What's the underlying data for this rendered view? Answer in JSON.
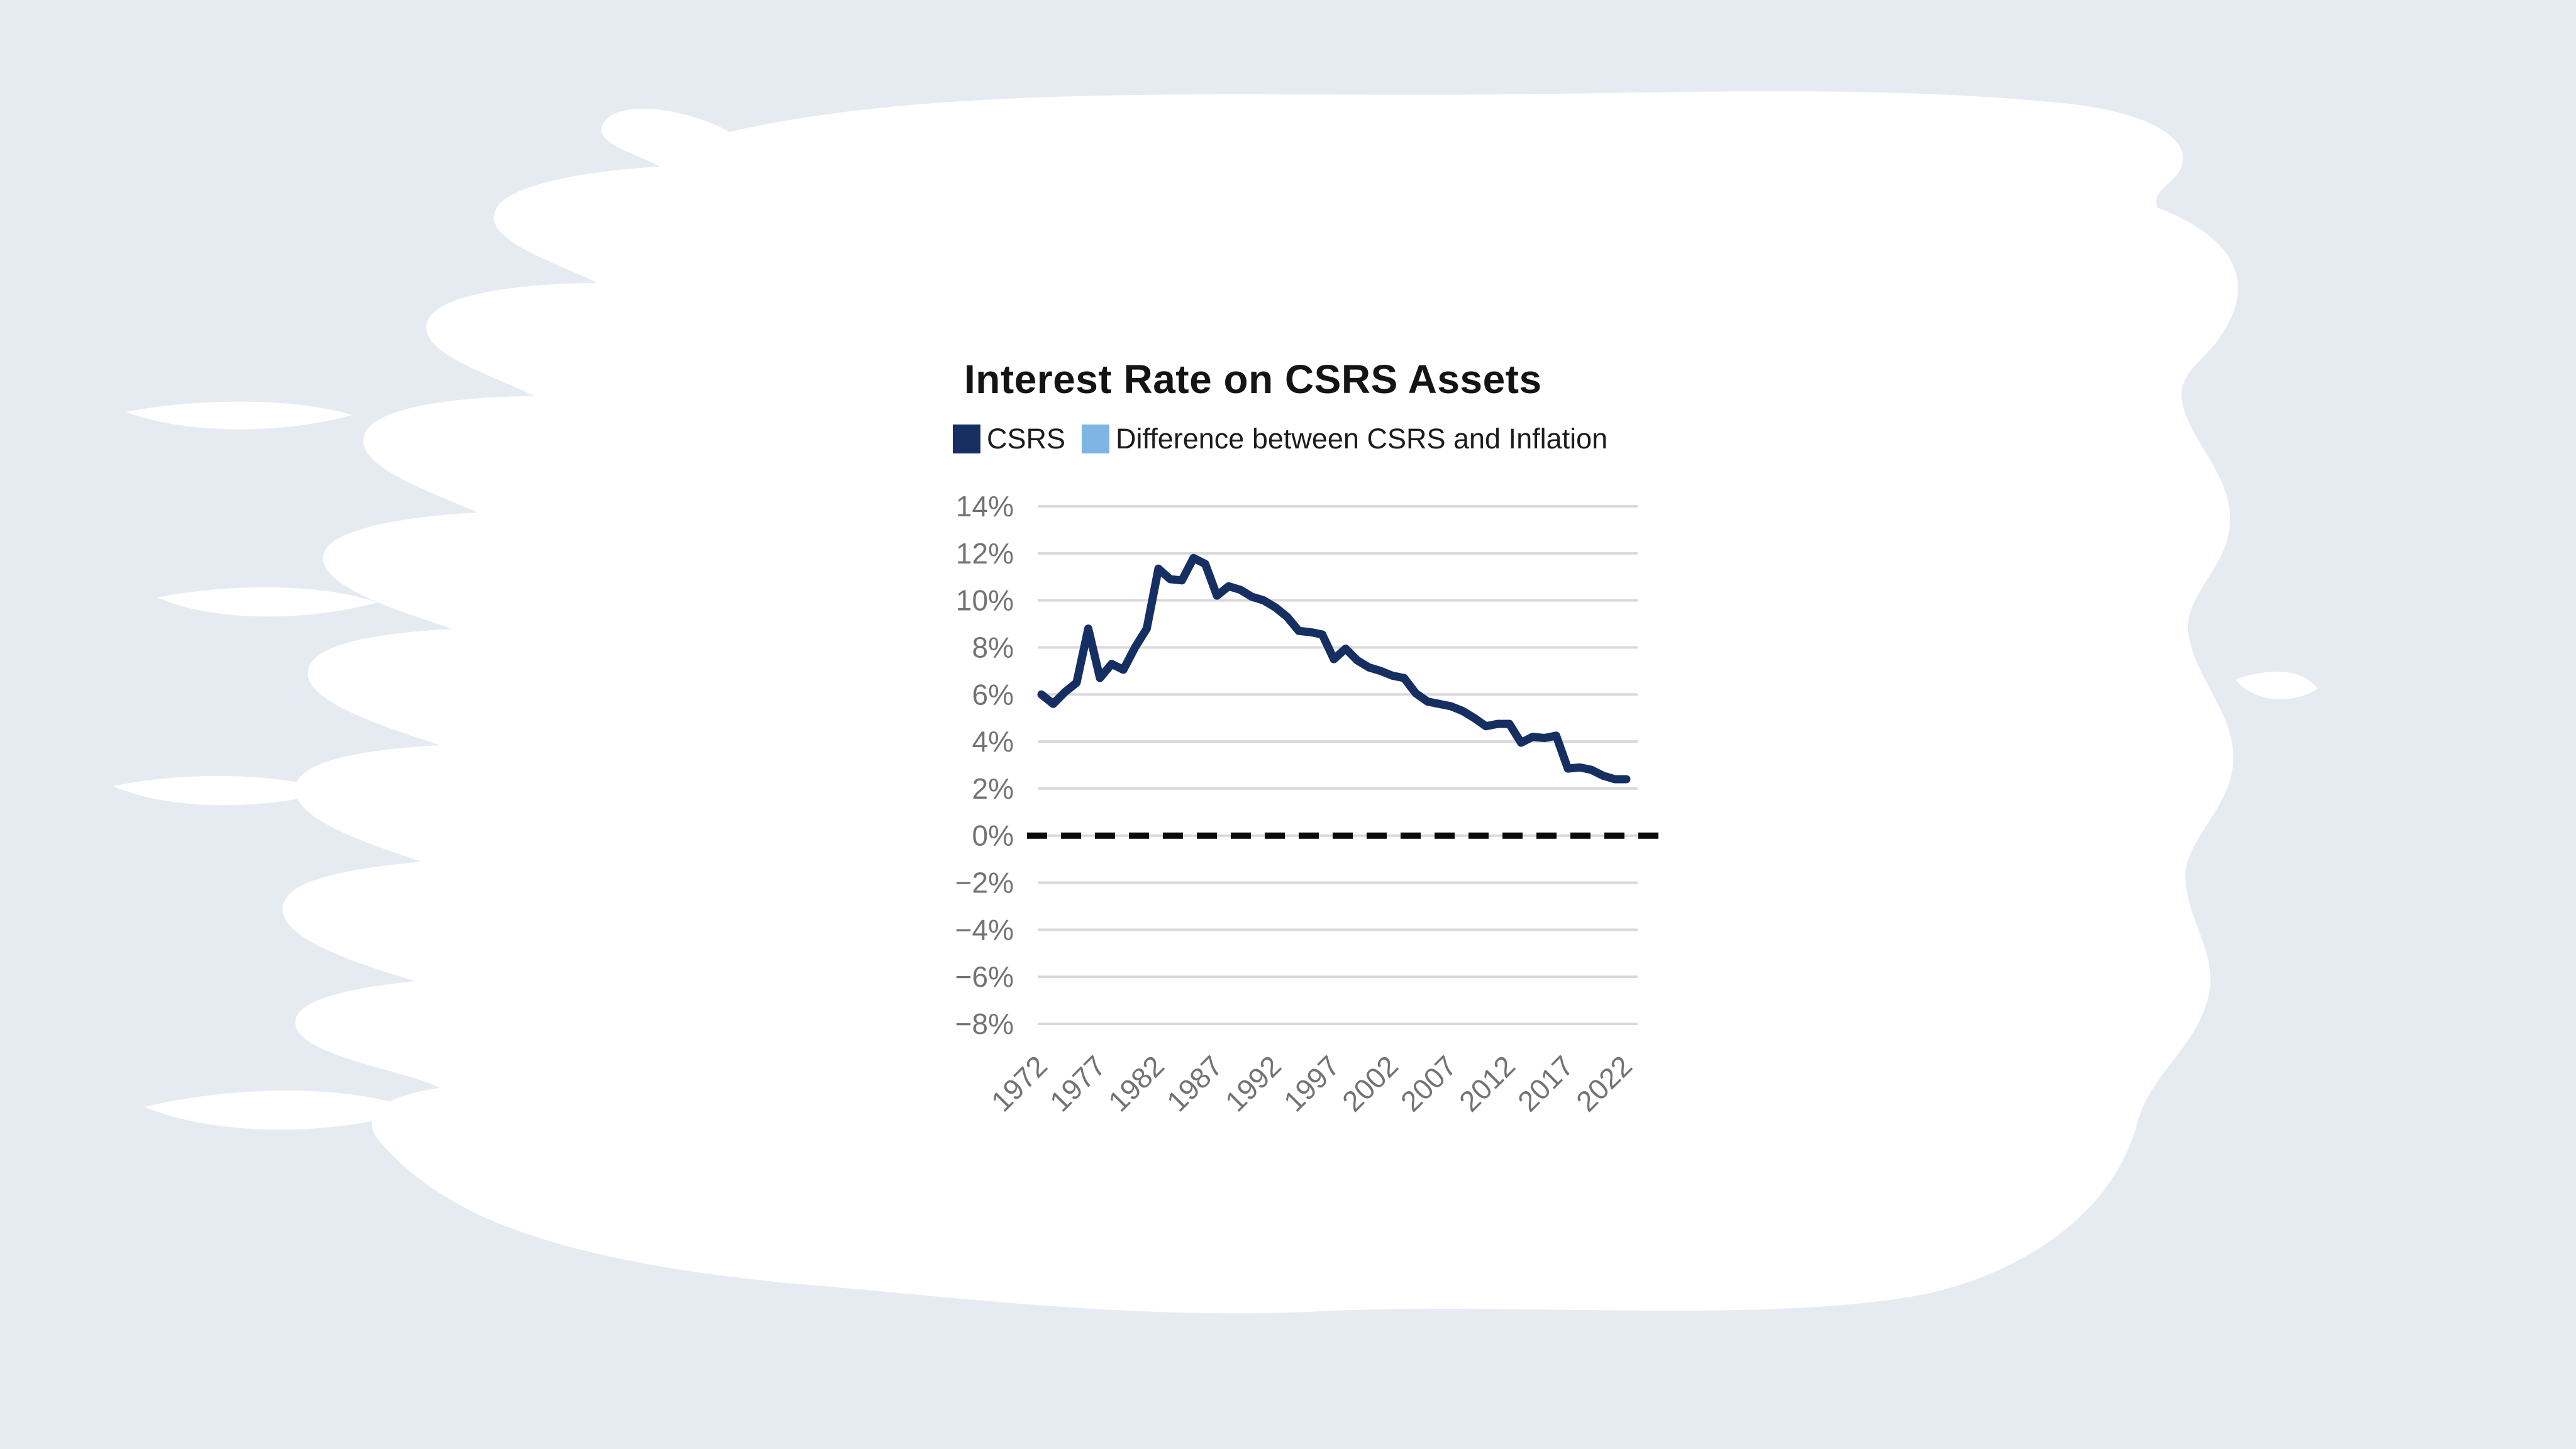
{
  "page": {
    "background": "#e6ebf2",
    "canvas": "#ffffff"
  },
  "header": {
    "title": "Interest Rate on CSRS Assets"
  },
  "legend": {
    "items": [
      {
        "label": "CSRS",
        "color": "#152f63"
      },
      {
        "label": "Difference between CSRS and Inflation",
        "color": "#7fb5e3"
      }
    ]
  },
  "chart_data": {
    "type": "line",
    "title": "Interest Rate on CSRS Assets",
    "x": [
      1972,
      1973,
      1974,
      1975,
      1976,
      1977,
      1978,
      1979,
      1980,
      1981,
      1982,
      1983,
      1984,
      1985,
      1986,
      1987,
      1988,
      1989,
      1990,
      1991,
      1992,
      1993,
      1994,
      1995,
      1996,
      1997,
      1998,
      1999,
      2000,
      2001,
      2002,
      2003,
      2004,
      2005,
      2006,
      2007,
      2008,
      2009,
      2010,
      2011,
      2012,
      2013,
      2014,
      2015,
      2016,
      2017,
      2018,
      2019,
      2020,
      2021,
      2022
    ],
    "series": [
      {
        "name": "CSRS",
        "color": "#152f63",
        "values": [
          6.0,
          5.6,
          6.1,
          6.5,
          8.8,
          6.7,
          7.3,
          7.05,
          8.0,
          8.8,
          11.35,
          10.9,
          10.85,
          11.8,
          11.55,
          10.2,
          10.6,
          10.45,
          10.15,
          10.0,
          9.7,
          9.3,
          8.7,
          8.65,
          8.55,
          7.5,
          7.95,
          7.45,
          7.15,
          7.0,
          6.8,
          6.7,
          6.05,
          5.7,
          5.6,
          5.5,
          5.3,
          5.0,
          4.65,
          4.75,
          4.75,
          3.95,
          4.2,
          4.15,
          4.25,
          2.85,
          2.9,
          2.8,
          2.55,
          2.4,
          2.4
        ]
      }
    ],
    "reference_line": {
      "name": "Difference between CSRS and Inflation",
      "value": 0,
      "color": "#0a0a0a",
      "style": "dashed"
    },
    "y_axis": {
      "range": [
        -8,
        14
      ],
      "ticks": [
        14,
        12,
        10,
        8,
        6,
        4,
        2,
        0,
        -2,
        -4,
        -6,
        -8
      ],
      "tick_labels": [
        "14%",
        "12%",
        "10%",
        "8%",
        "6%",
        "4%",
        "2%",
        "0%",
        "−2%",
        "−4%",
        "−6%",
        "−8%"
      ]
    },
    "x_axis": {
      "ticks": [
        1972,
        1977,
        1982,
        1987,
        1992,
        1997,
        2002,
        2007,
        2012,
        2017,
        2022
      ]
    },
    "grid": true,
    "grid_color": "#d9d9d9",
    "axis_label_color": "#737373",
    "legend_position": "top",
    "line_width": 13,
    "ylim": [
      -8,
      14
    ]
  }
}
